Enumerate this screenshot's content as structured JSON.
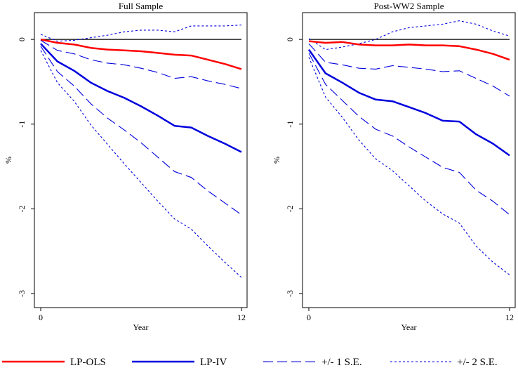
{
  "chart_data": [
    {
      "type": "line",
      "title": "Full Sample",
      "xlabel": "Year",
      "ylabel": "%",
      "xlim": [
        0,
        12
      ],
      "ylim": [
        -3.1,
        0.25
      ],
      "xticks": [
        0,
        12
      ],
      "yticks": [
        0,
        -1,
        -2,
        -3
      ],
      "ytick_labels": [
        "0",
        "-1",
        "-2",
        "-3"
      ],
      "xtick_labels": [
        "0",
        "12"
      ],
      "x": [
        0,
        1,
        2,
        3,
        4,
        5,
        6,
        7,
        8,
        9,
        10,
        11,
        12
      ],
      "series": [
        {
          "name": "LP-OLS",
          "role": "ols",
          "values": [
            0.0,
            -0.04,
            -0.06,
            -0.1,
            -0.12,
            -0.13,
            -0.14,
            -0.16,
            -0.18,
            -0.19,
            -0.24,
            -0.29,
            -0.35
          ]
        },
        {
          "name": "LP-IV",
          "role": "iv",
          "values": [
            -0.05,
            -0.26,
            -0.37,
            -0.51,
            -0.61,
            -0.69,
            -0.79,
            -0.9,
            -1.02,
            -1.04,
            -1.14,
            -1.23,
            -1.33
          ]
        },
        {
          "name": "+/- 1 S.E.",
          "role": "se1",
          "values": [
            -0.01,
            -0.13,
            -0.17,
            -0.24,
            -0.28,
            -0.3,
            -0.34,
            -0.39,
            -0.46,
            -0.44,
            -0.49,
            -0.53,
            -0.58
          ]
        },
        {
          "name": "+/- 1 S.E.",
          "role": "se1",
          "values": [
            -0.08,
            -0.38,
            -0.55,
            -0.76,
            -0.93,
            -1.07,
            -1.22,
            -1.39,
            -1.56,
            -1.63,
            -1.79,
            -1.93,
            -2.07
          ]
        },
        {
          "name": "+/- 2 S.E.",
          "role": "se2",
          "values": [
            0.06,
            -0.02,
            -0.01,
            0.02,
            0.05,
            0.09,
            0.11,
            0.11,
            0.09,
            0.16,
            0.16,
            0.16,
            0.17
          ]
        },
        {
          "name": "+/- 2 S.E.",
          "role": "se2",
          "values": [
            -0.13,
            -0.51,
            -0.73,
            -1.01,
            -1.24,
            -1.47,
            -1.69,
            -1.91,
            -2.12,
            -2.24,
            -2.44,
            -2.63,
            -2.81
          ]
        }
      ],
      "zero_line": true
    },
    {
      "type": "line",
      "title": "Post-WW2 Sample",
      "xlabel": "Year",
      "ylabel": "%",
      "xlim": [
        0,
        12
      ],
      "ylim": [
        -3.1,
        0.25
      ],
      "xticks": [
        0,
        12
      ],
      "yticks": [
        0,
        -1,
        -2,
        -3
      ],
      "ytick_labels": [
        "0",
        "-1",
        "-2",
        "-3"
      ],
      "xtick_labels": [
        "0",
        "12"
      ],
      "x": [
        0,
        1,
        2,
        3,
        4,
        5,
        6,
        7,
        8,
        9,
        10,
        11,
        12
      ],
      "series": [
        {
          "name": "LP-OLS",
          "role": "ols",
          "values": [
            -0.02,
            -0.04,
            -0.03,
            -0.06,
            -0.07,
            -0.07,
            -0.06,
            -0.07,
            -0.07,
            -0.08,
            -0.12,
            -0.17,
            -0.24
          ]
        },
        {
          "name": "LP-IV",
          "role": "iv",
          "values": [
            -0.12,
            -0.4,
            -0.51,
            -0.63,
            -0.71,
            -0.73,
            -0.8,
            -0.87,
            -0.96,
            -0.97,
            -1.12,
            -1.23,
            -1.37
          ]
        },
        {
          "name": "+/- 1 S.E.",
          "role": "se1",
          "values": [
            -0.05,
            -0.27,
            -0.3,
            -0.34,
            -0.35,
            -0.31,
            -0.33,
            -0.35,
            -0.38,
            -0.37,
            -0.46,
            -0.55,
            -0.67
          ]
        },
        {
          "name": "+/- 1 S.E.",
          "role": "se1",
          "values": [
            -0.16,
            -0.53,
            -0.72,
            -0.91,
            -1.06,
            -1.14,
            -1.27,
            -1.39,
            -1.51,
            -1.57,
            -1.78,
            -1.91,
            -2.07
          ]
        },
        {
          "name": "+/- 2 S.E.",
          "role": "se2",
          "values": [
            0.01,
            -0.12,
            -0.09,
            -0.05,
            0.0,
            0.09,
            0.14,
            0.16,
            0.18,
            0.22,
            0.18,
            0.1,
            0.04
          ]
        },
        {
          "name": "+/- 2 S.E.",
          "role": "se2",
          "values": [
            -0.21,
            -0.68,
            -0.92,
            -1.19,
            -1.41,
            -1.55,
            -1.73,
            -1.91,
            -2.06,
            -2.17,
            -2.44,
            -2.63,
            -2.78
          ]
        }
      ],
      "zero_line": true
    }
  ],
  "legend": {
    "placement": "bottom",
    "items": [
      {
        "label": "LP-OLS",
        "role": "ols"
      },
      {
        "label": "LP-IV",
        "role": "iv"
      },
      {
        "label": "+/- 1 S.E.",
        "role": "se1"
      },
      {
        "label": "+/- 2 S.E.",
        "role": "se2"
      }
    ]
  },
  "styles": {
    "ols": {
      "color": "#ff0000",
      "dash": "none",
      "width": 2.5
    },
    "iv": {
      "color": "#0000dd",
      "dash": "none",
      "width": 2.5
    },
    "se1": {
      "color": "#0000dd",
      "dash": "14,6",
      "width": 1.1
    },
    "se2": {
      "color": "#0000dd",
      "dash": "3,3",
      "width": 1.1
    },
    "zero": {
      "color": "#000000"
    }
  }
}
